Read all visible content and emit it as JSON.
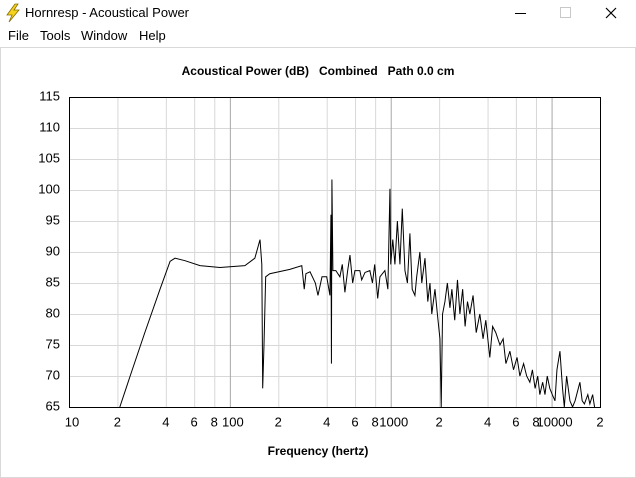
{
  "window": {
    "title": "Hornresp - Acoustical Power",
    "menu": [
      "File",
      "Tools",
      "Window",
      "Help"
    ]
  },
  "chart_data": {
    "type": "line",
    "title": "Acoustical Power (dB)   Combined   Path 0.0 cm",
    "x_label": "Frequency (hertz)",
    "log_x": true,
    "grid": true,
    "color": "#000000",
    "xlim": [
      10,
      20000
    ],
    "ylim": [
      65,
      115
    ],
    "xticks": [
      10,
      {
        "value": 20,
        "label": "2"
      },
      {
        "value": 40,
        "label": "4"
      },
      {
        "value": 60,
        "label": "6"
      },
      {
        "value": 80,
        "label": "8"
      },
      100,
      {
        "value": 200,
        "label": "2"
      },
      {
        "value": 400,
        "label": "4"
      },
      {
        "value": 600,
        "label": "6"
      },
      {
        "value": 800,
        "label": "8"
      },
      1000,
      {
        "value": 2000,
        "label": "2"
      },
      {
        "value": 4000,
        "label": "4"
      },
      {
        "value": 6000,
        "label": "6"
      },
      {
        "value": 8000,
        "label": "8"
      },
      10000,
      {
        "value": 20000,
        "label": "2"
      }
    ],
    "yticks": [
      65,
      70,
      75,
      80,
      85,
      90,
      95,
      100,
      105,
      110,
      115
    ],
    "x": [
      20.7,
      24,
      29.6,
      36.8,
      42.5,
      45.6,
      52.6,
      65.2,
      86.8,
      124,
      143,
      154,
      158,
      160,
      163,
      167,
      177,
      236,
      280,
      290,
      297,
      315,
      340,
      353,
      374,
      400,
      419,
      425,
      428,
      431,
      437,
      456,
      483,
      500,
      519,
      540,
      558,
      580,
      599,
      643,
      660,
      692,
      742,
      770,
      795,
      830,
      857,
      920,
      960,
      989,
      1000,
      1030,
      1062,
      1100,
      1141,
      1180,
      1226,
      1270,
      1316,
      1360,
      1414,
      1450,
      1518,
      1560,
      1633,
      1700,
      1754,
      1800,
      1884,
      1950,
      2023,
      2060,
      2100,
      2173,
      2250,
      2334,
      2400,
      2500,
      2600,
      2692,
      2800,
      2900,
      3000,
      3105,
      3250,
      3400,
      3581,
      3750,
      3900,
      4130,
      4300,
      4500,
      4775,
      5000,
      5200,
      5508,
      5800,
      6100,
      6353,
      6700,
      7000,
      7328,
      7600,
      7900,
      8200,
      8452,
      8800,
      9100,
      9400,
      9748,
      10100,
      10500,
      10800,
      11272,
      11700,
      12000,
      12400,
      13002,
      13500,
      14000,
      14997,
      15500,
      16000,
      16800,
      17298,
      18000,
      18500
    ],
    "values": [
      65,
      70,
      77,
      84,
      88.5,
      89,
      88.6,
      87.8,
      87.5,
      87.8,
      89,
      92,
      88,
      68,
      75,
      86,
      86.5,
      87.2,
      87.8,
      84,
      86.5,
      86.8,
      85,
      83,
      86,
      86,
      83,
      96,
      72,
      101.7,
      87,
      87,
      86,
      88,
      83.5,
      87,
      89.5,
      85,
      87,
      87,
      85.5,
      86.7,
      87,
      85,
      88,
      82.5,
      86,
      87,
      84,
      100.2,
      88,
      92,
      88,
      95,
      88,
      97,
      87,
      85,
      93,
      84,
      83,
      86,
      90,
      85,
      89,
      82,
      85,
      80,
      84,
      80,
      76,
      65,
      80,
      82,
      85,
      81,
      84,
      79,
      85.5,
      80,
      84,
      78,
      82,
      80,
      83,
      77,
      80,
      76,
      79,
      73,
      78,
      77,
      75,
      76,
      72,
      74,
      71,
      73,
      70,
      72,
      70,
      69,
      71,
      68,
      70,
      67,
      69,
      67,
      70,
      68,
      67,
      66,
      71,
      74,
      68,
      65,
      70,
      66,
      65,
      66,
      69,
      66,
      65.5,
      67,
      65.5,
      67,
      65
    ]
  }
}
